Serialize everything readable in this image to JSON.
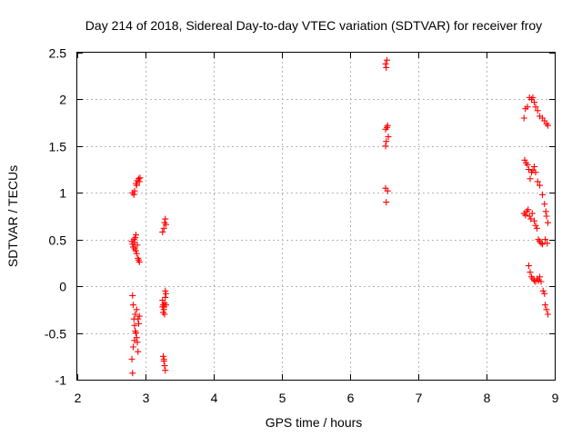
{
  "chart_data": {
    "type": "scatter",
    "title": "Day 214 of 2018, Sidereal Day-to-day VTEC variation (SDTVAR) for receiver froy",
    "xlabel": "GPS time / hours",
    "ylabel": "SDTVAR / TECUs",
    "xlim": [
      2,
      9
    ],
    "ylim": [
      -1,
      2.5
    ],
    "xticks": [
      "2",
      "3",
      "4",
      "5",
      "6",
      "7",
      "8",
      "9"
    ],
    "yticks": [
      "-1",
      "-0.5",
      "0",
      "0.5",
      "1",
      "1.5",
      "2",
      "2.5"
    ],
    "grid": true,
    "marker": "+",
    "color": "#ff0000",
    "series": [
      {
        "points": [
          [
            2.81,
            1.0
          ],
          [
            2.83,
            0.98
          ],
          [
            2.84,
            1.02
          ],
          [
            2.86,
            1.1
          ],
          [
            2.87,
            1.08
          ],
          [
            2.88,
            1.13
          ],
          [
            2.9,
            1.15
          ],
          [
            2.91,
            1.12
          ],
          [
            2.92,
            1.16
          ],
          [
            2.8,
            0.48
          ],
          [
            2.81,
            0.45
          ],
          [
            2.82,
            0.42
          ],
          [
            2.83,
            0.5
          ],
          [
            2.84,
            0.4
          ],
          [
            2.85,
            0.52
          ],
          [
            2.86,
            0.38
          ],
          [
            2.87,
            0.35
          ],
          [
            2.88,
            0.44
          ],
          [
            2.89,
            0.3
          ],
          [
            2.9,
            0.28
          ],
          [
            2.91,
            0.26
          ],
          [
            2.86,
            0.55
          ],
          [
            2.84,
            0.47
          ],
          [
            2.81,
            -0.1
          ],
          [
            2.82,
            -0.2
          ],
          [
            2.83,
            -0.35
          ],
          [
            2.84,
            -0.42
          ],
          [
            2.85,
            -0.48
          ],
          [
            2.86,
            -0.5
          ],
          [
            2.87,
            -0.55
          ],
          [
            2.85,
            -0.3
          ],
          [
            2.88,
            -0.6
          ],
          [
            2.89,
            -0.35
          ],
          [
            2.9,
            -0.4
          ],
          [
            2.91,
            -0.32
          ],
          [
            2.82,
            -0.65
          ],
          [
            2.8,
            -0.78
          ],
          [
            2.81,
            -0.93
          ],
          [
            2.87,
            -0.25
          ],
          [
            2.89,
            -0.7
          ],
          [
            2.84,
            -0.58
          ],
          [
            3.25,
            0.58
          ],
          [
            3.27,
            0.62
          ],
          [
            3.28,
            0.68
          ],
          [
            3.29,
            0.72
          ],
          [
            3.3,
            0.66
          ],
          [
            3.25,
            -0.15
          ],
          [
            3.26,
            -0.2
          ],
          [
            3.27,
            -0.25
          ],
          [
            3.28,
            -0.18
          ],
          [
            3.29,
            -0.12
          ],
          [
            3.3,
            -0.08
          ],
          [
            3.26,
            -0.28
          ],
          [
            3.27,
            -0.22
          ],
          [
            3.28,
            -0.3
          ],
          [
            3.25,
            -0.22
          ],
          [
            3.29,
            -0.05
          ],
          [
            3.3,
            -0.2
          ],
          [
            3.26,
            -0.75
          ],
          [
            3.27,
            -0.8
          ],
          [
            3.28,
            -0.85
          ],
          [
            3.29,
            -0.9
          ],
          [
            3.27,
            -0.78
          ],
          [
            6.52,
            2.38
          ],
          [
            6.53,
            2.34
          ],
          [
            6.54,
            2.42
          ],
          [
            6.52,
            1.5
          ],
          [
            6.53,
            1.55
          ],
          [
            6.54,
            1.7
          ],
          [
            6.55,
            1.72
          ],
          [
            6.56,
            1.6
          ],
          [
            6.52,
            1.68
          ],
          [
            6.52,
            1.05
          ],
          [
            6.53,
            0.9
          ],
          [
            6.55,
            1.02
          ],
          [
            8.55,
            1.8
          ],
          [
            8.57,
            1.9
          ],
          [
            8.6,
            1.92
          ],
          [
            8.63,
            2.02
          ],
          [
            8.66,
            2.0
          ],
          [
            8.68,
            2.02
          ],
          [
            8.7,
            1.97
          ],
          [
            8.72,
            1.92
          ],
          [
            8.75,
            1.88
          ],
          [
            8.78,
            1.82
          ],
          [
            8.82,
            1.8
          ],
          [
            8.85,
            1.77
          ],
          [
            8.88,
            1.74
          ],
          [
            8.9,
            1.72
          ],
          [
            8.56,
            1.35
          ],
          [
            8.58,
            1.32
          ],
          [
            8.6,
            1.3
          ],
          [
            8.62,
            1.25
          ],
          [
            8.64,
            1.15
          ],
          [
            8.66,
            1.22
          ],
          [
            8.68,
            1.24
          ],
          [
            8.7,
            1.28
          ],
          [
            8.72,
            1.22
          ],
          [
            8.75,
            1.12
          ],
          [
            8.78,
            1.08
          ],
          [
            8.82,
            0.98
          ],
          [
            8.55,
            0.78
          ],
          [
            8.57,
            0.76
          ],
          [
            8.59,
            0.8
          ],
          [
            8.61,
            0.82
          ],
          [
            8.63,
            0.75
          ],
          [
            8.65,
            0.72
          ],
          [
            8.67,
            0.78
          ],
          [
            8.7,
            0.7
          ],
          [
            8.72,
            0.65
          ],
          [
            8.74,
            0.62
          ],
          [
            8.76,
            0.5
          ],
          [
            8.78,
            0.48
          ],
          [
            8.8,
            0.46
          ],
          [
            8.82,
            0.45
          ],
          [
            8.85,
            0.88
          ],
          [
            8.87,
            0.8
          ],
          [
            8.88,
            0.75
          ],
          [
            8.9,
            0.68
          ],
          [
            8.86,
            0.5
          ],
          [
            8.89,
            0.46
          ],
          [
            8.62,
            0.22
          ],
          [
            8.64,
            0.15
          ],
          [
            8.66,
            0.1
          ],
          [
            8.68,
            0.08
          ],
          [
            8.7,
            0.06
          ],
          [
            8.72,
            0.05
          ],
          [
            8.74,
            0.08
          ],
          [
            8.76,
            0.06
          ],
          [
            8.78,
            0.1
          ],
          [
            8.8,
            0.05
          ],
          [
            8.83,
            -0.05
          ],
          [
            8.85,
            -0.08
          ],
          [
            8.86,
            -0.2
          ],
          [
            8.88,
            -0.25
          ],
          [
            8.9,
            -0.3
          ]
        ]
      }
    ]
  }
}
